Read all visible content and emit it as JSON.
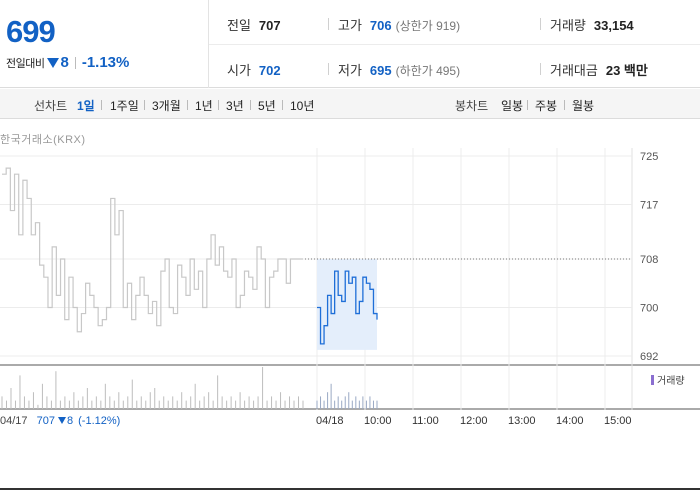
{
  "summary": {
    "price": "699",
    "change_label": "전일대비",
    "change_value": "8",
    "change_pct": "-1.13%",
    "prev_close_label": "전일",
    "prev_close": "707",
    "high_label": "고가",
    "high": "706",
    "upper_limit": "(상한가 919)",
    "volume_label": "거래량",
    "volume": "33,154",
    "open_label": "시가",
    "open": "702",
    "low_label": "저가",
    "low": "695",
    "lower_limit": "(하한가 495)",
    "amount_label": "거래대금",
    "amount": "23 백만"
  },
  "periods": {
    "title": "선차트",
    "items": [
      "1일",
      "1주일",
      "3개월",
      "1년",
      "3년",
      "5년",
      "10년"
    ],
    "active": "1일"
  },
  "candles": {
    "title": "봉차트",
    "items": [
      "일봉",
      "주봉",
      "월봉"
    ]
  },
  "exchange": "한국거래소(KRX)",
  "legend_volume": "거래량",
  "footer": {
    "date": "04/17",
    "close": "707",
    "change": "8",
    "change_pct": "(-1.12%)"
  },
  "colors": {
    "accent": "#1261c4",
    "prev_day_line": "#c8c8c8",
    "today_line": "#1f6fd8",
    "today_fill": "#e4eefb"
  },
  "chart_data": {
    "type": "line",
    "y_ticks": [
      725,
      717,
      708,
      700,
      692
    ],
    "ylim": [
      692,
      725
    ],
    "x_labels": [
      "04/18",
      "10:00",
      "11:00",
      "12:00",
      "13:00",
      "14:00",
      "15:00"
    ],
    "reference_line": 708,
    "series": [
      {
        "values": [
          722,
          723,
          716,
          722,
          712,
          721,
          718,
          712,
          714,
          707,
          705,
          700,
          710,
          702,
          708,
          698,
          705,
          700,
          696,
          699,
          704,
          702,
          700,
          697,
          698,
          700,
          718,
          712,
          716,
          700,
          704,
          698,
          702,
          705,
          702,
          699,
          701,
          697,
          706,
          708,
          700,
          699,
          707,
          705,
          702,
          708,
          703,
          706,
          700,
          708,
          712,
          707,
          710,
          706,
          705,
          708,
          700,
          702,
          706,
          705,
          703,
          710,
          708,
          700,
          705,
          706,
          708,
          708,
          704,
          708,
          708,
          708,
          708
        ]
      },
      {
        "values": [
          700,
          694,
          697,
          702,
          699,
          706,
          702,
          701,
          706,
          704,
          705,
          699,
          701,
          705,
          704,
          703,
          699,
          698
        ]
      }
    ],
    "volume": {
      "series_name": "거래량",
      "prev_day": [
        3,
        2,
        5,
        2,
        8,
        3,
        2,
        4,
        1,
        6,
        3,
        2,
        9,
        2,
        3,
        2,
        4,
        2,
        3,
        5,
        2,
        3,
        2,
        6,
        3,
        2,
        4,
        2,
        3,
        7,
        2,
        3,
        2,
        4,
        5,
        2,
        3,
        2,
        3,
        2,
        4,
        2,
        3,
        6,
        2,
        3,
        4,
        2,
        8,
        3,
        2,
        3,
        2,
        4,
        2,
        3,
        2,
        3,
        10,
        2,
        3,
        2,
        4,
        2,
        3,
        2,
        3,
        2
      ],
      "today": [
        2,
        3,
        2,
        4,
        6,
        2,
        3,
        2,
        3,
        4,
        2,
        3,
        2,
        3,
        2,
        3,
        2,
        2
      ]
    }
  }
}
